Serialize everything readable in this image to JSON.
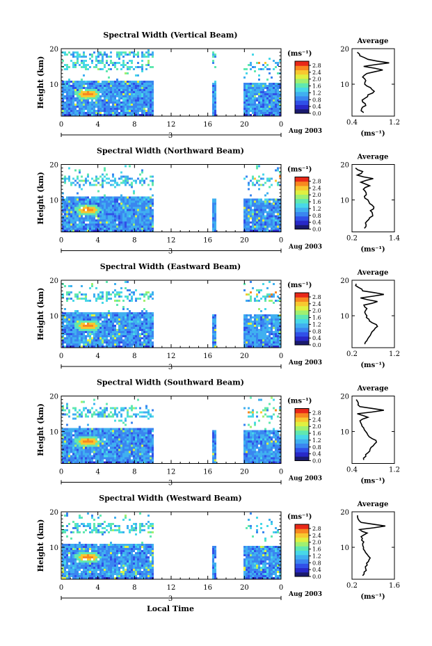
{
  "figure": {
    "xlabel": "Local Time",
    "date_label": "Aug 2003",
    "day_label": "3",
    "x_ticks": [
      "0",
      "4",
      "8",
      "12",
      "16",
      "20",
      "0"
    ],
    "y_ticks": [
      "20",
      "10"
    ],
    "ylabel": "Height (km)",
    "colorbar_unit": "(ms⁻¹)",
    "colorbar_ticks": [
      "2.8",
      "2.4",
      "2.0",
      "1.6",
      "1.2",
      "0.8",
      "0.4",
      "0.0"
    ],
    "avg_title": "Average",
    "avg_unit": "(ms⁻¹)",
    "colormap": [
      "#1a1a6e",
      "#2828c8",
      "#3050e8",
      "#3a86f0",
      "#40b0f0",
      "#48d8e8",
      "#60e8b0",
      "#a0f070",
      "#e0f040",
      "#f8c830",
      "#f88820",
      "#e82818"
    ]
  },
  "chart_data": [
    {
      "type": "heatmap",
      "title": "Spectral Width (Vertical Beam)",
      "xlabel": "Local Time",
      "ylabel": "Height (km)",
      "xlim": [
        0,
        24
      ],
      "ylim": [
        1,
        20
      ],
      "data_gaps_hours": [
        [
          10,
          16.3
        ],
        [
          16.9,
          19.8
        ]
      ],
      "colorbar": {
        "unit": "ms-1",
        "range": [
          0.0,
          2.8
        ]
      },
      "hotspot": {
        "time_h": 2.8,
        "height_km": 7.5,
        "value": 2.6
      },
      "average_profile": {
        "xlim": [
          0.4,
          1.2
        ],
        "x_ticks": [
          "0.4",
          "1.2"
        ],
        "heights_km": [
          2,
          3,
          4,
          5,
          6,
          7,
          8,
          9,
          10,
          11,
          12,
          13,
          14,
          15,
          16,
          17,
          18,
          19
        ],
        "values": [
          0.62,
          0.58,
          0.66,
          0.6,
          0.64,
          0.7,
          0.82,
          0.75,
          0.64,
          0.66,
          0.6,
          0.68,
          0.98,
          0.62,
          1.1,
          0.7,
          0.55,
          0.5
        ]
      }
    },
    {
      "type": "heatmap",
      "title": "Spectral Width (Northward Beam)",
      "xlabel": "Local Time",
      "ylabel": "Height (km)",
      "xlim": [
        0,
        24
      ],
      "ylim": [
        1,
        20
      ],
      "data_gaps_hours": [
        [
          10,
          16.3
        ],
        [
          16.9,
          19.8
        ]
      ],
      "colorbar": {
        "unit": "ms-1",
        "range": [
          0.0,
          2.8
        ]
      },
      "hotspot": {
        "time_h": 2.8,
        "height_km": 7.5,
        "value": 2.6
      },
      "average_profile": {
        "xlim": [
          0.2,
          1.4
        ],
        "x_ticks": [
          "0.2",
          "1.4"
        ],
        "heights_km": [
          2,
          3,
          4,
          5,
          6,
          7,
          8,
          9,
          10,
          11,
          12,
          13,
          14,
          15,
          16,
          17,
          18,
          19
        ],
        "values": [
          0.55,
          0.6,
          0.62,
          0.7,
          0.78,
          0.72,
          0.82,
          0.7,
          0.65,
          0.55,
          0.6,
          0.52,
          0.7,
          0.45,
          0.8,
          0.35,
          0.5,
          0.3
        ]
      }
    },
    {
      "type": "heatmap",
      "title": "Spectral Width (Eastward Beam)",
      "xlabel": "Local Time",
      "ylabel": "Height (km)",
      "xlim": [
        0,
        24
      ],
      "ylim": [
        1,
        20
      ],
      "data_gaps_hours": [
        [
          10,
          16.3
        ],
        [
          16.9,
          19.8
        ]
      ],
      "colorbar": {
        "unit": "ms-1",
        "range": [
          0.0,
          2.8
        ]
      },
      "hotspot": {
        "time_h": 2.8,
        "height_km": 7.5,
        "value": 2.6
      },
      "average_profile": {
        "xlim": [
          0.2,
          1.2
        ],
        "x_ticks": [
          "0.2",
          "1.2"
        ],
        "heights_km": [
          2,
          3,
          4,
          5,
          6,
          7,
          8,
          9,
          10,
          11,
          12,
          13,
          14,
          15,
          16,
          17,
          18,
          19
        ],
        "values": [
          0.5,
          0.55,
          0.6,
          0.65,
          0.72,
          0.8,
          0.68,
          0.6,
          0.55,
          0.5,
          0.55,
          0.48,
          0.8,
          0.4,
          0.95,
          0.45,
          0.35,
          0.3
        ]
      }
    },
    {
      "type": "heatmap",
      "title": "Spectral Width (Southward Beam)",
      "xlabel": "Local Time",
      "ylabel": "Height (km)",
      "xlim": [
        0,
        24
      ],
      "ylim": [
        1,
        20
      ],
      "data_gaps_hours": [
        [
          10,
          16.3
        ],
        [
          16.9,
          19.8
        ]
      ],
      "colorbar": {
        "unit": "ms-1",
        "range": [
          0.0,
          2.8
        ]
      },
      "hotspot": {
        "time_h": 2.8,
        "height_km": 7.5,
        "value": 2.6
      },
      "average_profile": {
        "xlim": [
          0.4,
          1.2
        ],
        "x_ticks": [
          "0.4",
          "1.2"
        ],
        "heights_km": [
          2,
          3,
          4,
          5,
          6,
          7,
          8,
          9,
          10,
          11,
          12,
          13,
          14,
          15,
          16,
          17,
          18,
          19
        ],
        "values": [
          0.62,
          0.66,
          0.7,
          0.74,
          0.8,
          0.86,
          0.78,
          0.7,
          0.66,
          0.62,
          0.58,
          0.55,
          0.7,
          0.5,
          1.0,
          0.55,
          0.52,
          0.48
        ]
      }
    },
    {
      "type": "heatmap",
      "title": "Spectral Width (Westward Beam)",
      "xlabel": "Local Time",
      "ylabel": "Height (km)",
      "xlim": [
        0,
        24
      ],
      "ylim": [
        1,
        20
      ],
      "data_gaps_hours": [
        [
          10,
          16.3
        ],
        [
          16.9,
          19.8
        ]
      ],
      "colorbar": {
        "unit": "ms-1",
        "range": [
          0.0,
          2.8
        ]
      },
      "hotspot": {
        "time_h": 2.8,
        "height_km": 7.5,
        "value": 2.6
      },
      "average_profile": {
        "xlim": [
          0.2,
          1.6
        ],
        "x_ticks": [
          "0.2",
          "1.6"
        ],
        "heights_km": [
          2,
          3,
          4,
          5,
          6,
          7,
          8,
          9,
          10,
          11,
          12,
          13,
          14,
          15,
          16,
          17,
          18,
          19
        ],
        "values": [
          0.55,
          0.6,
          0.65,
          0.7,
          0.74,
          0.8,
          0.7,
          0.62,
          0.58,
          0.55,
          0.52,
          0.5,
          0.7,
          0.45,
          1.3,
          0.5,
          0.4,
          0.38
        ]
      }
    }
  ]
}
